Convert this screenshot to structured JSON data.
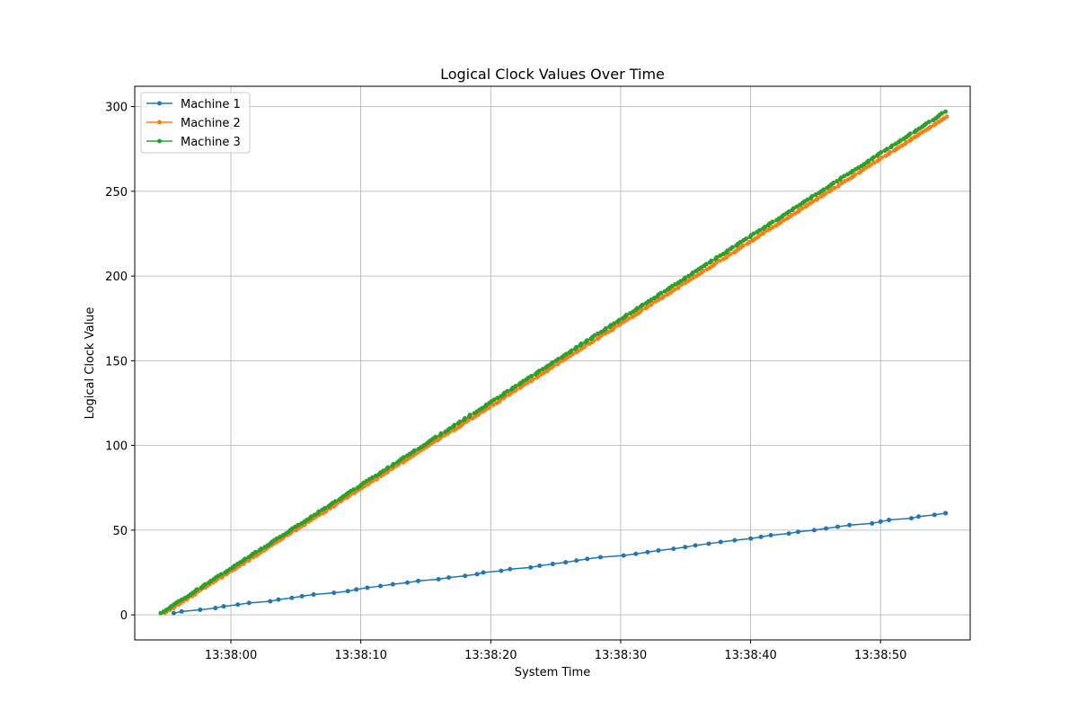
{
  "chart_data": {
    "type": "line",
    "title": "Logical Clock Values Over Time",
    "xlabel": "System Time",
    "ylabel": "Logical Clock Value",
    "x_start": "13:37:54.6",
    "x_end": "13:38:55.0",
    "xlim": [
      "13:37:52.6",
      "13:38:56.9"
    ],
    "ylim": [
      -14.8,
      312
    ],
    "x_ticks": [
      "13:38:00",
      "13:38:10",
      "13:38:20",
      "13:38:30",
      "13:38:40",
      "13:38:50"
    ],
    "y_ticks": [
      0,
      50,
      100,
      150,
      200,
      250,
      300
    ],
    "grid": true,
    "legend_position": "upper-left",
    "series": [
      {
        "name": "Machine 1",
        "color": "#1f77b4",
        "marker": "circle",
        "start": "13:37:55.6",
        "end": "13:38:55.0",
        "y_start": 1,
        "y_end": 60,
        "point_count": 60
      },
      {
        "name": "Machine 2",
        "color": "#ff7f0e",
        "marker": "circle",
        "start": "13:37:54.9",
        "end": "13:38:55.1",
        "y_start": 1,
        "y_end": 294,
        "point_count": 294
      },
      {
        "name": "Machine 3",
        "color": "#2ca02c",
        "marker": "circle",
        "start": "13:37:54.6",
        "end": "13:38:55.0",
        "y_start": 1,
        "y_end": 297,
        "point_count": 297
      }
    ]
  }
}
